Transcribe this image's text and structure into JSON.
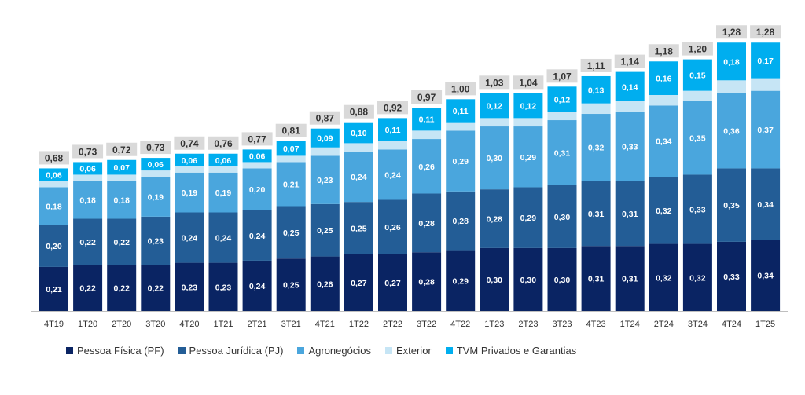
{
  "chart_data": {
    "type": "bar",
    "stacked": true,
    "title": "",
    "xlabel": "",
    "ylabel": "",
    "ylim": [
      0,
      1.35
    ],
    "grid": false,
    "legend_position": "bottom-left",
    "categories": [
      "4T19",
      "1T20",
      "2T20",
      "3T20",
      "4T20",
      "1T21",
      "2T21",
      "3T21",
      "4T21",
      "1T22",
      "2T22",
      "3T22",
      "4T22",
      "1T23",
      "2T23",
      "3T23",
      "4T23",
      "1T24",
      "2T24",
      "3T24",
      "4T24",
      "1T25"
    ],
    "totals": [
      "0,68",
      "0,73",
      "0,72",
      "0,73",
      "0,74",
      "0,76",
      "0,77",
      "0,81",
      "0,87",
      "0,88",
      "0,92",
      "0,97",
      "1,00",
      "1,03",
      "1,04",
      "1,07",
      "1,11",
      "1,14",
      "1,18",
      "1,20",
      "1,28",
      "1,28"
    ],
    "series": [
      {
        "name": "Pessoa Física (PF)",
        "color": "#0a2463",
        "labeled": true,
        "values": [
          0.21,
          0.22,
          0.22,
          0.22,
          0.23,
          0.23,
          0.24,
          0.25,
          0.26,
          0.27,
          0.27,
          0.28,
          0.29,
          0.3,
          0.3,
          0.3,
          0.31,
          0.31,
          0.32,
          0.32,
          0.33,
          0.34
        ]
      },
      {
        "name": "Pessoa Jurídica (PJ)",
        "color": "#235d96",
        "labeled": true,
        "values": [
          0.2,
          0.22,
          0.22,
          0.23,
          0.24,
          0.24,
          0.24,
          0.25,
          0.25,
          0.25,
          0.26,
          0.28,
          0.28,
          0.28,
          0.29,
          0.3,
          0.31,
          0.31,
          0.32,
          0.33,
          0.35,
          0.34
        ]
      },
      {
        "name": "Agronegócios",
        "color": "#4aa6dd",
        "labeled": true,
        "values": [
          0.18,
          0.18,
          0.18,
          0.19,
          0.19,
          0.19,
          0.2,
          0.21,
          0.23,
          0.24,
          0.24,
          0.26,
          0.29,
          0.3,
          0.29,
          0.31,
          0.32,
          0.33,
          0.34,
          0.35,
          0.36,
          0.37
        ]
      },
      {
        "name": "Exterior",
        "color": "#c6e5f5",
        "labeled": false,
        "values": [
          0.03,
          0.03,
          0.03,
          0.03,
          0.03,
          0.03,
          0.03,
          0.03,
          0.04,
          0.04,
          0.04,
          0.04,
          0.04,
          0.04,
          0.04,
          0.04,
          0.05,
          0.05,
          0.05,
          0.05,
          0.06,
          0.06
        ]
      },
      {
        "name": "TVM Privados e Garantias",
        "color": "#00aeef",
        "labeled": true,
        "values": [
          0.06,
          0.06,
          0.07,
          0.06,
          0.06,
          0.06,
          0.06,
          0.07,
          0.09,
          0.1,
          0.11,
          0.11,
          0.11,
          0.12,
          0.12,
          0.12,
          0.13,
          0.14,
          0.16,
          0.15,
          0.18,
          0.17
        ]
      }
    ],
    "colors": {
      "total_box": "#d9d9d9",
      "axis": "#bfbfbf"
    }
  }
}
